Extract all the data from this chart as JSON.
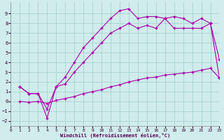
{
  "xlabel": "Windchill (Refroidissement éolien,°C)",
  "bg_color": "#d0ecec",
  "grid_color": "#a0cccc",
  "line_color": "#aa00aa",
  "line1_x": [
    1,
    2,
    3,
    4,
    5,
    6,
    7,
    8,
    9,
    10,
    11,
    12,
    13,
    14,
    15,
    16,
    17,
    18,
    19,
    20,
    21,
    22,
    23
  ],
  "line1_y": [
    1.5,
    0.8,
    0.8,
    -1.7,
    1.5,
    2.5,
    4.0,
    5.5,
    6.5,
    7.5,
    8.5,
    9.3,
    9.5,
    8.5,
    8.7,
    8.7,
    8.5,
    8.7,
    8.5,
    8.0,
    8.5,
    8.0,
    4.3
  ],
  "line2_x": [
    1,
    2,
    3,
    4,
    5,
    6,
    7,
    8,
    9,
    10,
    11,
    12,
    13,
    14,
    15,
    16,
    17,
    18,
    19,
    20,
    21,
    22,
    23
  ],
  "line2_y": [
    1.5,
    0.8,
    0.8,
    -0.8,
    1.5,
    1.8,
    3.0,
    4.0,
    5.0,
    6.0,
    7.0,
    7.5,
    8.0,
    7.5,
    7.8,
    7.5,
    8.5,
    7.5,
    7.5,
    7.5,
    7.5,
    8.0,
    2.4
  ],
  "line3_x": [
    1,
    2,
    3,
    4,
    5,
    6,
    7,
    8,
    9,
    10,
    11,
    12,
    13,
    14,
    15,
    16,
    17,
    18,
    19,
    20,
    21,
    22,
    23
  ],
  "line3_y": [
    0.0,
    -0.1,
    0.0,
    -0.2,
    0.1,
    0.3,
    0.5,
    0.8,
    1.0,
    1.2,
    1.5,
    1.7,
    2.0,
    2.2,
    2.4,
    2.5,
    2.7,
    2.8,
    2.9,
    3.0,
    3.2,
    3.4,
    2.4
  ],
  "xlim": [
    0,
    23
  ],
  "ylim": [
    -2.5,
    10.2
  ],
  "xticks": [
    0,
    1,
    2,
    3,
    4,
    5,
    6,
    7,
    8,
    9,
    10,
    11,
    12,
    13,
    14,
    15,
    16,
    17,
    18,
    19,
    20,
    21,
    22,
    23
  ],
  "yticks": [
    -2,
    -1,
    0,
    1,
    2,
    3,
    4,
    5,
    6,
    7,
    8,
    9
  ]
}
